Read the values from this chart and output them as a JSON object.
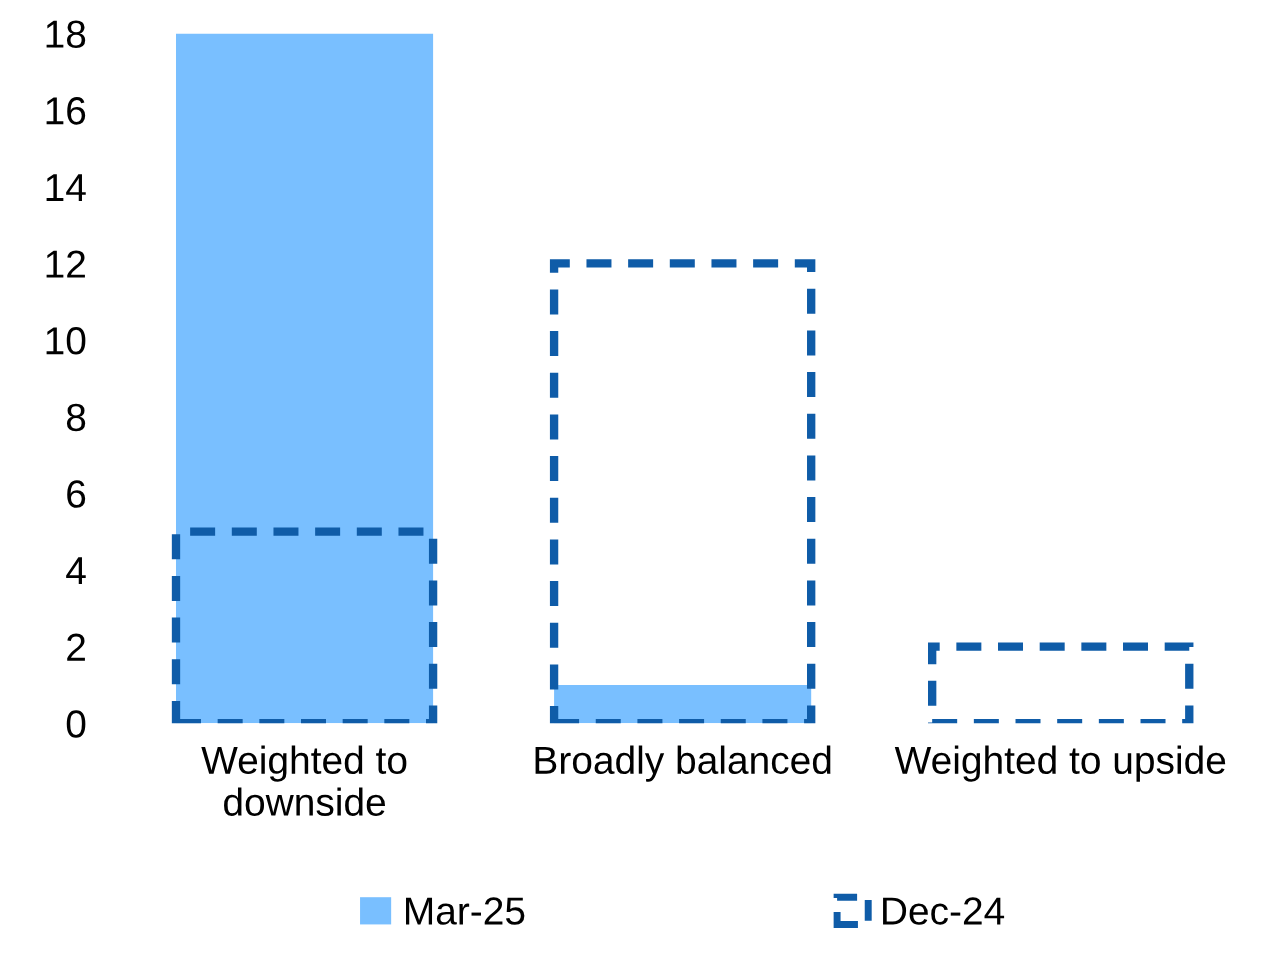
{
  "chart_data": {
    "type": "bar",
    "categories": [
      "Weighted to\ndownside",
      "Broadly balanced",
      "Weighted to upside"
    ],
    "series": [
      {
        "name": "Mar-25",
        "color": "#79bfff",
        "values": [
          18,
          1,
          0
        ]
      },
      {
        "name": "Dec-24",
        "color": "#0f5ca8",
        "values": [
          5,
          12,
          2
        ],
        "line_style": "dashed"
      }
    ],
    "ylim": [
      0,
      18
    ],
    "yticks": [
      0,
      2,
      4,
      6,
      8,
      10,
      12,
      14,
      16,
      18
    ],
    "grid": false,
    "legend": "bottom"
  }
}
